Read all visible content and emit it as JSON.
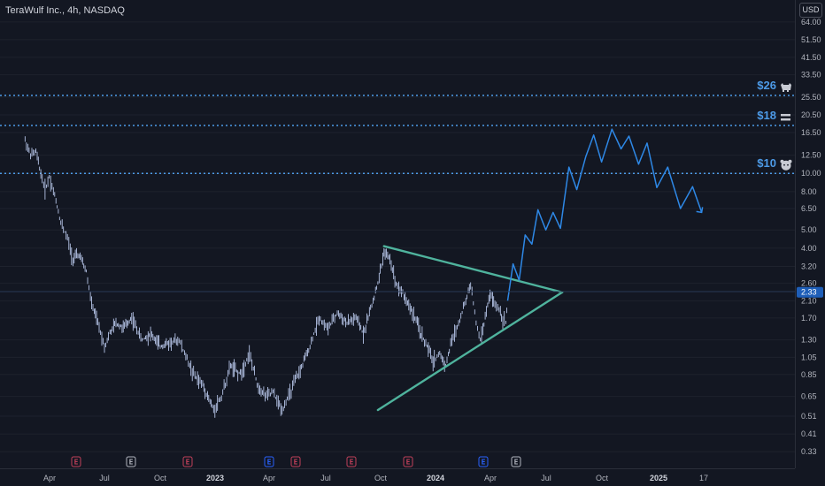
{
  "header": {
    "symbol_title": "TeraWulf Inc., 4h, NASDAQ",
    "currency_button": "USD"
  },
  "price_axis": {
    "labels": [
      "64.00",
      "51.50",
      "41.50",
      "33.50",
      "25.50",
      "20.50",
      "16.50",
      "12.50",
      "10.00",
      "8.00",
      "6.50",
      "5.00",
      "4.00",
      "3.20",
      "2.60",
      "2.10",
      "1.70",
      "1.30",
      "1.05",
      "0.85",
      "0.65",
      "0.51",
      "0.41",
      "0.33"
    ],
    "current_price": "2.33"
  },
  "time_axis": {
    "labels": [
      {
        "text": "Apr",
        "bold": false
      },
      {
        "text": "Jul",
        "bold": false
      },
      {
        "text": "Oct",
        "bold": false
      },
      {
        "text": "2023",
        "bold": true
      },
      {
        "text": "Apr",
        "bold": false
      },
      {
        "text": "Jul",
        "bold": false
      },
      {
        "text": "Oct",
        "bold": false
      },
      {
        "text": "2024",
        "bold": true
      },
      {
        "text": "Apr",
        "bold": false
      },
      {
        "text": "Jul",
        "bold": false
      },
      {
        "text": "Oct",
        "bold": false
      },
      {
        "text": "2025",
        "bold": true
      },
      {
        "text": "17",
        "bold": false
      }
    ]
  },
  "levels": [
    {
      "label": "$26",
      "price": 26,
      "icon": "bull-icon"
    },
    {
      "label": "$18",
      "price": 18,
      "icon": "equals-icon"
    },
    {
      "label": "$10",
      "price": 10,
      "icon": "bear-icon"
    }
  ],
  "events": [
    {
      "letter": "E",
      "kind": "earnings",
      "color": "#c2405a"
    },
    {
      "letter": "E",
      "kind": "neutral",
      "color": "#b2b5be"
    },
    {
      "letter": "E",
      "kind": "earnings",
      "color": "#c2405a"
    },
    {
      "letter": "E",
      "kind": "upcoming",
      "color": "#2962ff"
    },
    {
      "letter": "E",
      "kind": "earnings",
      "color": "#c2405a"
    },
    {
      "letter": "E",
      "kind": "earnings",
      "color": "#c2405a"
    },
    {
      "letter": "E",
      "kind": "earnings",
      "color": "#c2405a"
    },
    {
      "letter": "E",
      "kind": "upcoming",
      "color": "#2962ff"
    },
    {
      "letter": "E",
      "kind": "neutral",
      "color": "#b2b5be"
    }
  ],
  "colors": {
    "background": "#131722",
    "candles": "#c9d9ff",
    "triangle": "#4fb39d",
    "projection": "#2e88e6",
    "level": "#4d9be8",
    "grid": "#1e222d"
  },
  "chart_data": {
    "type": "line",
    "scale": "log",
    "ylim": [
      0.33,
      64
    ],
    "series": [],
    "price_path": [
      [
        "2022-02-20",
        15.0
      ],
      [
        "2022-03-01",
        12.5
      ],
      [
        "2022-03-10",
        13.0
      ],
      [
        "2022-03-18",
        10.0
      ],
      [
        "2022-03-25",
        8.2
      ],
      [
        "2022-04-01",
        9.6
      ],
      [
        "2022-04-10",
        7.6
      ],
      [
        "2022-04-20",
        5.5
      ],
      [
        "2022-05-01",
        4.5
      ],
      [
        "2022-05-10",
        3.5
      ],
      [
        "2022-05-20",
        3.7
      ],
      [
        "2022-06-01",
        3.0
      ],
      [
        "2022-06-10",
        2.0
      ],
      [
        "2022-06-20",
        1.6
      ],
      [
        "2022-07-01",
        1.2
      ],
      [
        "2022-07-10",
        1.4
      ],
      [
        "2022-07-20",
        1.6
      ],
      [
        "2022-08-01",
        1.5
      ],
      [
        "2022-08-15",
        1.7
      ],
      [
        "2022-09-01",
        1.3
      ],
      [
        "2022-09-15",
        1.4
      ],
      [
        "2022-10-01",
        1.2
      ],
      [
        "2022-10-15",
        1.25
      ],
      [
        "2022-11-01",
        1.3
      ],
      [
        "2022-11-10",
        1.1
      ],
      [
        "2022-11-25",
        0.85
      ],
      [
        "2022-12-10",
        0.75
      ],
      [
        "2022-12-28",
        0.55
      ],
      [
        "2023-01-10",
        0.65
      ],
      [
        "2023-01-25",
        0.95
      ],
      [
        "2023-02-10",
        0.85
      ],
      [
        "2023-02-25",
        1.1
      ],
      [
        "2023-03-10",
        0.75
      ],
      [
        "2023-03-25",
        0.65
      ],
      [
        "2023-04-05",
        0.68
      ],
      [
        "2023-04-20",
        0.55
      ],
      [
        "2023-05-05",
        0.7
      ],
      [
        "2023-05-20",
        0.9
      ],
      [
        "2023-06-05",
        1.2
      ],
      [
        "2023-06-20",
        1.7
      ],
      [
        "2023-07-05",
        1.5
      ],
      [
        "2023-07-20",
        1.8
      ],
      [
        "2023-08-05",
        1.6
      ],
      [
        "2023-08-20",
        1.7
      ],
      [
        "2023-09-01",
        1.4
      ],
      [
        "2023-09-15",
        2.0
      ],
      [
        "2023-09-25",
        2.6
      ],
      [
        "2023-10-05",
        3.8
      ],
      [
        "2023-10-15",
        3.5
      ],
      [
        "2023-10-25",
        2.6
      ],
      [
        "2023-11-05",
        2.3
      ],
      [
        "2023-11-15",
        2.0
      ],
      [
        "2023-11-25",
        1.7
      ],
      [
        "2023-12-05",
        1.4
      ],
      [
        "2023-12-15",
        1.2
      ],
      [
        "2023-12-25",
        1.0
      ],
      [
        "2024-01-05",
        1.1
      ],
      [
        "2024-01-15",
        0.95
      ],
      [
        "2024-01-25",
        1.3
      ],
      [
        "2024-02-05",
        1.6
      ],
      [
        "2024-02-15",
        2.0
      ],
      [
        "2024-02-25",
        2.6
      ],
      [
        "2024-03-05",
        1.6
      ],
      [
        "2024-03-12",
        1.3
      ],
      [
        "2024-03-20",
        1.7
      ],
      [
        "2024-03-28",
        2.3
      ],
      [
        "2024-04-05",
        2.0
      ],
      [
        "2024-04-12",
        1.9
      ],
      [
        "2024-04-18",
        1.7
      ],
      [
        "2024-04-23",
        1.6
      ],
      [
        "2024-04-26",
        2.1
      ]
    ],
    "triangle": {
      "upper": [
        [
          "2023-10-05",
          4.1
        ],
        [
          "2024-07-25",
          2.33
        ]
      ],
      "lower": [
        [
          "2023-09-25",
          0.55
        ],
        [
          "2024-07-25",
          2.33
        ]
      ]
    },
    "projection": [
      [
        "2024-04-26",
        2.1
      ],
      [
        "2024-05-05",
        3.3
      ],
      [
        "2024-05-15",
        2.7
      ],
      [
        "2024-05-25",
        4.7
      ],
      [
        "2024-06-05",
        4.2
      ],
      [
        "2024-06-15",
        6.4
      ],
      [
        "2024-06-28",
        5.0
      ],
      [
        "2024-07-10",
        6.2
      ],
      [
        "2024-07-22",
        5.1
      ],
      [
        "2024-08-05",
        10.8
      ],
      [
        "2024-08-18",
        8.2
      ],
      [
        "2024-09-02",
        12.3
      ],
      [
        "2024-09-15",
        16.0
      ],
      [
        "2024-09-28",
        11.5
      ],
      [
        "2024-10-15",
        17.2
      ],
      [
        "2024-10-30",
        13.5
      ],
      [
        "2024-11-12",
        15.8
      ],
      [
        "2024-11-28",
        11.2
      ],
      [
        "2024-12-12",
        14.5
      ],
      [
        "2024-12-28",
        8.4
      ],
      [
        "2025-01-15",
        10.8
      ],
      [
        "2025-02-05",
        6.5
      ],
      [
        "2025-02-25",
        8.5
      ],
      [
        "2025-03-12",
        6.2
      ]
    ]
  }
}
